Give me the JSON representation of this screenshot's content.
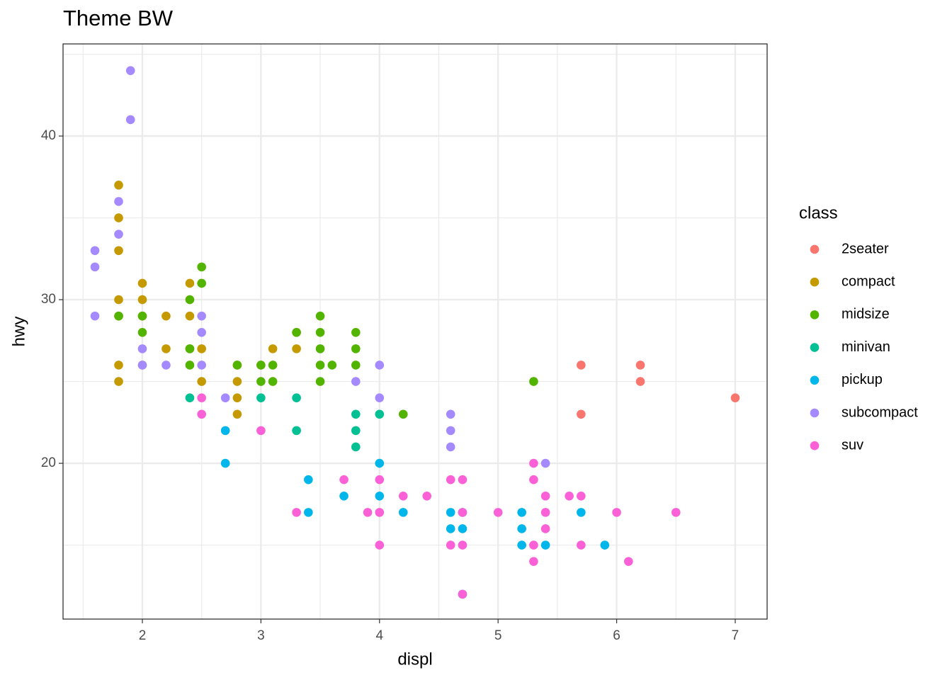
{
  "chart_data": {
    "type": "scatter",
    "title": "Theme BW",
    "x_label": "displ",
    "y_label": "hwy",
    "legend_title": "class",
    "xlim": [
      1.331,
      7.269
    ],
    "ylim": [
      10.48,
      45.63
    ],
    "xticks": [
      2,
      3,
      4,
      5,
      6,
      7
    ],
    "yticks": [
      20,
      30,
      40
    ],
    "x_minor_grid": [
      1.5,
      2.5,
      3.5,
      4.5,
      5.5,
      6.5
    ],
    "y_minor_grid": [
      15,
      25,
      35,
      45
    ],
    "grid": true,
    "legend_position": "right",
    "series": [
      {
        "name": "2seater",
        "color": "#F8766D",
        "x": [
          5.7,
          5.7,
          6.2,
          6.2,
          7
        ],
        "values": [
          26,
          23,
          26,
          25,
          24
        ]
      },
      {
        "name": "compact",
        "color": "#C49A00",
        "x": [
          1.8,
          1.8,
          1.8,
          1.8,
          1.8,
          1.8,
          1.8,
          2,
          2,
          2,
          2,
          2.2,
          2.2,
          2.4,
          2.4,
          2.4,
          2.5,
          2.5,
          2.8,
          2.8,
          2.8,
          2.8,
          3,
          3.1,
          3.3,
          3.3
        ],
        "values": [
          37,
          35,
          33,
          30,
          29,
          26,
          25,
          31,
          30,
          29,
          26,
          29,
          27,
          31,
          29,
          27,
          27,
          25,
          25,
          24,
          23,
          26,
          26,
          27,
          28,
          27
        ]
      },
      {
        "name": "midsize",
        "color": "#53B400",
        "x": [
          1.8,
          2,
          2,
          2.4,
          2.4,
          2.4,
          2.5,
          2.5,
          2.8,
          3,
          3,
          3.1,
          3.1,
          3.3,
          3.5,
          3.5,
          3.5,
          3.5,
          3.5,
          3.6,
          3.8,
          3.8,
          3.8,
          4.2,
          5.3
        ],
        "values": [
          29,
          29,
          28,
          30,
          27,
          26,
          32,
          31,
          26,
          26,
          25,
          26,
          25,
          28,
          29,
          28,
          27,
          26,
          25,
          26,
          28,
          27,
          26,
          23,
          25
        ]
      },
      {
        "name": "minivan",
        "color": "#00C094",
        "x": [
          2.4,
          3,
          3.3,
          3.3,
          3.8,
          3.8,
          3.8,
          4
        ],
        "values": [
          24,
          24,
          24,
          22,
          23,
          22,
          21,
          23
        ]
      },
      {
        "name": "pickup",
        "color": "#00B6EB",
        "x": [
          2.7,
          2.7,
          3.4,
          3.4,
          3.7,
          4,
          4,
          4.2,
          4.6,
          4.6,
          4.7,
          4.7,
          4.7,
          5.2,
          5.2,
          5.2,
          5.4,
          5.7,
          5.9
        ],
        "values": [
          22,
          20,
          19,
          17,
          18,
          20,
          18,
          17,
          17,
          16,
          17,
          16,
          12,
          17,
          16,
          15,
          15,
          17,
          15
        ]
      },
      {
        "name": "subcompact",
        "color": "#A58AFF",
        "x": [
          1.6,
          1.6,
          1.6,
          1.8,
          1.8,
          1.9,
          1.9,
          2,
          2,
          2.2,
          2.5,
          2.5,
          2.5,
          2.7,
          3.8,
          4,
          4,
          4.6,
          4.6,
          4.6,
          5.4
        ],
        "values": [
          33,
          32,
          29,
          36,
          34,
          44,
          41,
          27,
          26,
          26,
          29,
          28,
          26,
          24,
          25,
          26,
          24,
          23,
          22,
          21,
          20
        ]
      },
      {
        "name": "suv",
        "color": "#FB61D7",
        "x": [
          2.5,
          2.5,
          3,
          3.3,
          3.7,
          3.9,
          4,
          4,
          4,
          4.2,
          4.4,
          4.6,
          4.6,
          4.7,
          4.7,
          4.7,
          4.7,
          5,
          5.3,
          5.3,
          5.3,
          5.3,
          5.4,
          5.4,
          5.4,
          5.6,
          5.7,
          5.7,
          6,
          6.1,
          6.5
        ],
        "values": [
          24,
          23,
          22,
          17,
          19,
          17,
          19,
          17,
          15,
          18,
          18,
          19,
          15,
          19,
          17,
          15,
          12,
          17,
          20,
          19,
          15,
          14,
          18,
          17,
          16,
          18,
          18,
          15,
          17,
          14,
          17
        ]
      }
    ]
  }
}
